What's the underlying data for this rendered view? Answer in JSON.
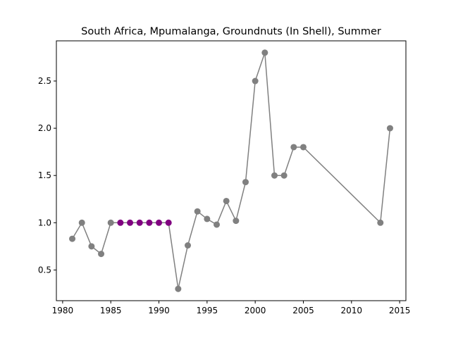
{
  "chart_data": {
    "type": "line",
    "title": "South Africa, Mpumalanga, Groundnuts (In Shell), Summer",
    "xlabel": "",
    "ylabel": "",
    "xlim": [
      1979.35,
      2015.65
    ],
    "ylim": [
      0.175,
      2.925
    ],
    "xticks": [
      1980,
      1985,
      1990,
      1995,
      2000,
      2005,
      2010,
      2015
    ],
    "yticks": [
      0.5,
      1.0,
      1.5,
      2.0,
      2.5
    ],
    "xtick_labels": [
      "1980",
      "1985",
      "1990",
      "1995",
      "2000",
      "2005",
      "2010",
      "2015"
    ],
    "ytick_labels": [
      "0.5",
      "1.0",
      "1.5",
      "2.0",
      "2.5"
    ],
    "grid": false,
    "line_color": "#808080",
    "series": [
      {
        "x": [
          1981,
          1982,
          1983,
          1984,
          1985,
          1986,
          1987,
          1988,
          1989,
          1990,
          1991,
          1992,
          1993,
          1994,
          1995,
          1996,
          1997,
          1998,
          1999,
          2000,
          2001,
          2002,
          2003,
          2004,
          2005,
          2013,
          2014
        ],
        "y": [
          0.83,
          1.0,
          0.75,
          0.67,
          1.0,
          1.0,
          1.0,
          1.0,
          1.0,
          1.0,
          1.0,
          0.3,
          0.76,
          1.12,
          1.04,
          0.98,
          1.23,
          1.02,
          1.43,
          2.5,
          2.8,
          1.5,
          1.5,
          1.8,
          1.8,
          1.0,
          2.0
        ],
        "point_colors": [
          "#808080",
          "#808080",
          "#808080",
          "#808080",
          "#808080",
          "#800080",
          "#800080",
          "#800080",
          "#800080",
          "#800080",
          "#800080",
          "#808080",
          "#808080",
          "#808080",
          "#808080",
          "#808080",
          "#808080",
          "#808080",
          "#808080",
          "#808080",
          "#808080",
          "#808080",
          "#808080",
          "#808080",
          "#808080",
          "#808080",
          "#808080"
        ]
      }
    ]
  }
}
